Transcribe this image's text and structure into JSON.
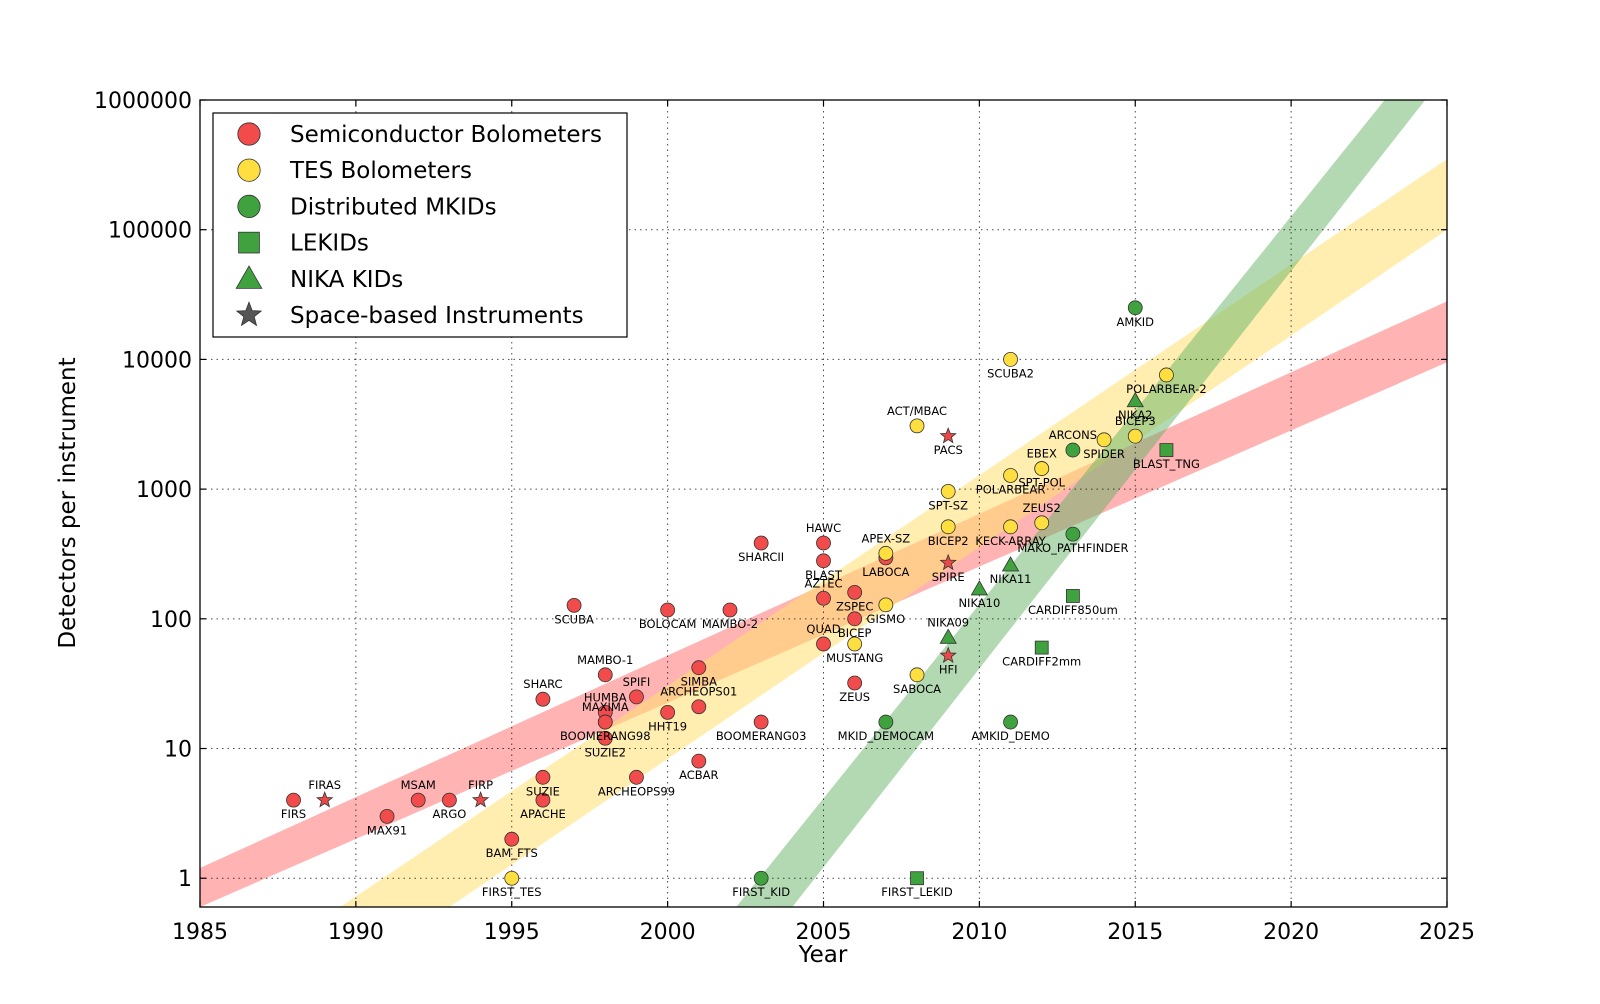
{
  "chart_data": {
    "type": "scatter",
    "xlabel": "Year",
    "ylabel": "Detectors per instrument",
    "xlim": [
      1985,
      2025
    ],
    "ylim": [
      0.6,
      1000000
    ],
    "yscale": "log",
    "grid": true,
    "legend_position": "top-left",
    "xticks": [
      "1985",
      "1990",
      "1995",
      "2000",
      "2005",
      "2010",
      "2015",
      "2020",
      "2025"
    ],
    "yticks": [
      {
        "value": 1,
        "label": "1"
      },
      {
        "value": 10,
        "label": "10"
      },
      {
        "value": 100,
        "label": "100"
      },
      {
        "value": 1000,
        "label": "1000"
      },
      {
        "value": 10000,
        "label": "10000"
      },
      {
        "value": 100000,
        "label": "100000"
      },
      {
        "value": 1000000,
        "label": "1000000"
      }
    ],
    "bands": [
      {
        "color": "#ff8080",
        "opacity": 0.6,
        "upper": [
          [
            1985,
            1.2
          ],
          [
            2025,
            28000
          ]
        ],
        "lower": [
          [
            1985,
            0.6
          ],
          [
            2025,
            9500
          ]
        ]
      },
      {
        "color": "#ffe070",
        "opacity": 0.55,
        "upper": [
          [
            1989.5,
            0.6
          ],
          [
            2025,
            350000
          ]
        ],
        "lower": [
          [
            1993,
            0.6
          ],
          [
            2025,
            100000
          ]
        ]
      },
      {
        "color": "#66b366",
        "opacity": 0.5,
        "upper": [
          [
            2002.2,
            0.6
          ],
          [
            2023,
            1000000
          ]
        ],
        "lower": [
          [
            2004,
            0.6
          ],
          [
            2024.3,
            1000000
          ]
        ]
      }
    ],
    "series": [
      {
        "name": "Semiconductor Bolometers",
        "marker": "circle",
        "color": "#f24b4b",
        "points": [
          {
            "x": 1988,
            "y": 4,
            "label": "FIRS",
            "pos": "below"
          },
          {
            "x": 1991,
            "y": 3,
            "label": "MAX91",
            "pos": "below"
          },
          {
            "x": 1992,
            "y": 4,
            "label": "MSAM",
            "pos": "above"
          },
          {
            "x": 1993,
            "y": 4,
            "label": "ARGO",
            "pos": "below"
          },
          {
            "x": 1995,
            "y": 2,
            "label": "BAM_FTS",
            "pos": "below"
          },
          {
            "x": 1996,
            "y": 6,
            "label": "SUZIE",
            "pos": "below"
          },
          {
            "x": 1996,
            "y": 4,
            "label": "APACHE",
            "pos": "below"
          },
          {
            "x": 1996,
            "y": 24,
            "label": "SHARC",
            "pos": "above"
          },
          {
            "x": 1997,
            "y": 127,
            "label": "SCUBA",
            "pos": "below"
          },
          {
            "x": 1998,
            "y": 37,
            "label": "MAMBO-1",
            "pos": "above"
          },
          {
            "x": 1998,
            "y": 19,
            "label": "HUMBA",
            "pos": "above"
          },
          {
            "x": 1998,
            "y": 16,
            "label": "MAXIMA",
            "pos": "above"
          },
          {
            "x": 1998,
            "y": 16,
            "label": "BOOMERANG98",
            "pos": "below"
          },
          {
            "x": 1998,
            "y": 12,
            "label": "SUZIE2",
            "pos": "below"
          },
          {
            "x": 1999,
            "y": 25,
            "label": "SPIFI",
            "pos": "above"
          },
          {
            "x": 1999,
            "y": 6,
            "label": "ARCHEOPS99",
            "pos": "below"
          },
          {
            "x": 2000,
            "y": 117,
            "label": "BOLOCAM",
            "pos": "below"
          },
          {
            "x": 2000,
            "y": 19,
            "label": "HHT19",
            "pos": "below"
          },
          {
            "x": 2001,
            "y": 42,
            "label": "SIMBA",
            "pos": "below"
          },
          {
            "x": 2001,
            "y": 21,
            "label": "ARCHEOPS01",
            "pos": "above"
          },
          {
            "x": 2001,
            "y": 8,
            "label": "ACBAR",
            "pos": "below"
          },
          {
            "x": 2002,
            "y": 117,
            "label": "MAMBO-2",
            "pos": "below"
          },
          {
            "x": 2003,
            "y": 384,
            "label": "SHARCII",
            "pos": "below"
          },
          {
            "x": 2003,
            "y": 16,
            "label": "BOOMERANG03",
            "pos": "below"
          },
          {
            "x": 2005,
            "y": 384,
            "label": "HAWC",
            "pos": "above"
          },
          {
            "x": 2005,
            "y": 280,
            "label": "BLAST",
            "pos": "below"
          },
          {
            "x": 2005,
            "y": 144,
            "label": "AZTEC",
            "pos": "above"
          },
          {
            "x": 2005,
            "y": 64,
            "label": "QUAD",
            "pos": "above"
          },
          {
            "x": 2006,
            "y": 160,
            "label": "ZSPEC",
            "pos": "below"
          },
          {
            "x": 2006,
            "y": 100,
            "label": "BICEP",
            "pos": "below"
          },
          {
            "x": 2006,
            "y": 32,
            "label": "ZEUS",
            "pos": "below"
          },
          {
            "x": 2007,
            "y": 295,
            "label": "LABOCA",
            "pos": "below"
          }
        ]
      },
      {
        "name": "TES Bolometers",
        "marker": "circle",
        "color": "#ffde3f",
        "points": [
          {
            "x": 1995,
            "y": 1,
            "label": "FIRST_TES",
            "pos": "below"
          },
          {
            "x": 2006,
            "y": 64,
            "label": "MUSTANG",
            "pos": "below"
          },
          {
            "x": 2007,
            "y": 320,
            "label": "APEX-SZ",
            "pos": "above"
          },
          {
            "x": 2007,
            "y": 128,
            "label": "GISMO",
            "pos": "below"
          },
          {
            "x": 2008,
            "y": 3072,
            "label": "ACT/MBAC",
            "pos": "above"
          },
          {
            "x": 2008,
            "y": 37,
            "label": "SABOCA",
            "pos": "below"
          },
          {
            "x": 2009,
            "y": 960,
            "label": "SPT-SZ",
            "pos": "below"
          },
          {
            "x": 2009,
            "y": 512,
            "label": "BICEP2",
            "pos": "below"
          },
          {
            "x": 2011,
            "y": 10000,
            "label": "SCUBA2",
            "pos": "below"
          },
          {
            "x": 2011,
            "y": 1274,
            "label": "POLARBEAR",
            "pos": "below"
          },
          {
            "x": 2011,
            "y": 512,
            "label": "KECK-ARRAY",
            "pos": "below"
          },
          {
            "x": 2012,
            "y": 1440,
            "label": "SPT-POL",
            "pos": "below"
          },
          {
            "x": 2012,
            "y": 550,
            "label": "ZEUS2",
            "pos": "above"
          },
          {
            "x": 2012,
            "y": 1440,
            "label": "EBEX",
            "pos": "above"
          },
          {
            "x": 2014,
            "y": 2400,
            "label": "SPIDER",
            "pos": "below"
          },
          {
            "x": 2015,
            "y": 2560,
            "label": "BICEP3",
            "pos": "above"
          },
          {
            "x": 2016,
            "y": 7588,
            "label": "POLARBEAR-2",
            "pos": "below"
          }
        ]
      },
      {
        "name": "Distributed MKIDs",
        "marker": "circle",
        "color": "#3fa23f",
        "points": [
          {
            "x": 2003,
            "y": 1,
            "label": "FIRST_KID",
            "pos": "below"
          },
          {
            "x": 2007,
            "y": 16,
            "label": "MKID_DEMOCAM",
            "pos": "below"
          },
          {
            "x": 2011,
            "y": 16,
            "label": "AMKID_DEMO",
            "pos": "below"
          },
          {
            "x": 2013,
            "y": 2000,
            "label": "ARCONS",
            "pos": "above"
          },
          {
            "x": 2013,
            "y": 450,
            "label": "MAKO_PATHFINDER",
            "pos": "below"
          },
          {
            "x": 2015,
            "y": 25000,
            "label": "AMKID",
            "pos": "below"
          }
        ]
      },
      {
        "name": "LEKIDs",
        "marker": "square",
        "color": "#3fa23f",
        "points": [
          {
            "x": 2008,
            "y": 1,
            "label": "FIRST_LEKID",
            "pos": "below"
          },
          {
            "x": 2013,
            "y": 150,
            "label": "CARDIFF850um",
            "pos": "below"
          },
          {
            "x": 2012,
            "y": 60,
            "label": "CARDIFF2mm",
            "pos": "below"
          },
          {
            "x": 2016,
            "y": 2000,
            "label": "BLAST_TNG",
            "pos": "below"
          }
        ]
      },
      {
        "name": "NIKA KIDs",
        "marker": "triangle",
        "color": "#3fa23f",
        "points": [
          {
            "x": 2009,
            "y": 72,
            "label": "NIKA09",
            "pos": "above"
          },
          {
            "x": 2010,
            "y": 170,
            "label": "NIKA10",
            "pos": "below"
          },
          {
            "x": 2011,
            "y": 260,
            "label": "NIKA11",
            "pos": "below"
          },
          {
            "x": 2015,
            "y": 4800,
            "label": "NIKA2",
            "pos": "below"
          }
        ]
      },
      {
        "name": "Space-based Instruments",
        "marker": "star",
        "color": "#e84a4a",
        "points": [
          {
            "x": 1989,
            "y": 4,
            "label": "FIRAS",
            "pos": "above"
          },
          {
            "x": 1994,
            "y": 4,
            "label": "FIRP",
            "pos": "above"
          },
          {
            "x": 2009,
            "y": 2560,
            "label": "PACS",
            "pos": "below"
          },
          {
            "x": 2009,
            "y": 270,
            "label": "SPIRE",
            "pos": "below"
          },
          {
            "x": 2009,
            "y": 52,
            "label": "HFI",
            "pos": "below"
          }
        ]
      }
    ],
    "legend": [
      {
        "label": "Semiconductor Bolometers",
        "marker": "circle",
        "color": "#f24b4b"
      },
      {
        "label": "TES Bolometers",
        "marker": "circle",
        "color": "#ffde3f"
      },
      {
        "label": "Distributed MKIDs",
        "marker": "circle",
        "color": "#3fa23f"
      },
      {
        "label": "LEKIDs",
        "marker": "square",
        "color": "#3fa23f"
      },
      {
        "label": "NIKA KIDs",
        "marker": "triangle",
        "color": "#3fa23f"
      },
      {
        "label": "Space-based Instruments",
        "marker": "star",
        "color": "#555555"
      }
    ]
  }
}
